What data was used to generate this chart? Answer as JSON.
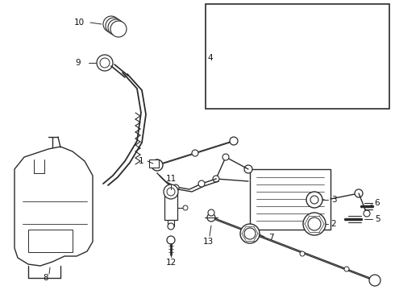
{
  "background_color": "#ffffff",
  "line_color": "#2a2a2a",
  "label_color": "#111111",
  "fig_width": 4.9,
  "fig_height": 3.6,
  "dpi": 100,
  "lw": 0.9,
  "fs": 7.5
}
